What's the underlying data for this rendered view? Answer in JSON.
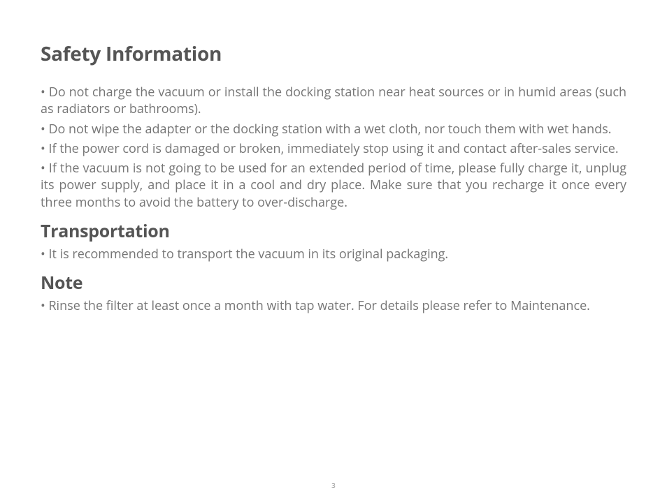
{
  "page": {
    "number": "3",
    "background_color": "#ffffff",
    "text_color": "#757575",
    "heading_color": "#555555",
    "font_family": "Open Sans"
  },
  "sections": {
    "main": {
      "title": "Safety Information",
      "title_fontsize": 28,
      "title_fontweight": 700,
      "bullets": [
        "• Do not charge the vacuum or install the docking station near heat sources or in humid areas (such as radiators or bathrooms).",
        "• Do not wipe the adapter or the docking station with a wet cloth, nor touch them with wet hands.",
        "• If the power cord is damaged or broken, immediately stop using it and contact after-sales service.",
        "• If the vacuum is not going to be used for an extended period of time, please fully charge it, unplug its power supply, and place it in a cool and dry place. Make sure that you recharge it  once every three months to avoid the battery to over-discharge."
      ]
    },
    "transportation": {
      "title": "Transportation",
      "title_fontsize": 25,
      "title_fontweight": 700,
      "bullets": [
        "• It is recommended to transport the vacuum in its original packaging."
      ]
    },
    "note": {
      "title": "Note",
      "title_fontsize": 25,
      "title_fontweight": 700,
      "bullets": [
        "• Rinse the filter at least once a month with tap water. For details please refer to Maintenance."
      ]
    }
  },
  "body_fontsize": 18,
  "body_lineheight": 1.35
}
